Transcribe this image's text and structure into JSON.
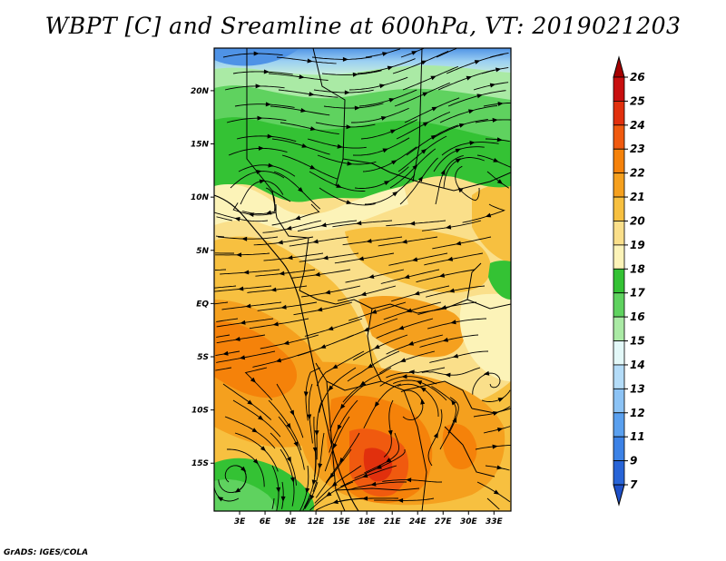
{
  "title": "WBPT [C] and Sreamline at 600hPa, VT: 2019021203",
  "credit": "GrADS: IGES/COLA",
  "map": {
    "lon_range": [
      0,
      35
    ],
    "lat_range": [
      -19.5,
      24
    ],
    "lat_ticks": [
      {
        "value": 20,
        "label": "20N"
      },
      {
        "value": 15,
        "label": "15N"
      },
      {
        "value": 10,
        "label": "10N"
      },
      {
        "value": 5,
        "label": "5N"
      },
      {
        "value": 0,
        "label": "EQ"
      },
      {
        "value": -5,
        "label": "5S"
      },
      {
        "value": -10,
        "label": "10S"
      },
      {
        "value": -15,
        "label": "15S"
      }
    ],
    "lon_ticks": [
      {
        "value": 3,
        "label": "3E"
      },
      {
        "value": 6,
        "label": "6E"
      },
      {
        "value": 9,
        "label": "9E"
      },
      {
        "value": 12,
        "label": "12E"
      },
      {
        "value": 15,
        "label": "15E"
      },
      {
        "value": 18,
        "label": "18E"
      },
      {
        "value": 21,
        "label": "21E"
      },
      {
        "value": 24,
        "label": "24E"
      },
      {
        "value": 27,
        "label": "27E"
      },
      {
        "value": 30,
        "label": "30E"
      },
      {
        "value": 33,
        "label": "33E"
      }
    ]
  },
  "colorbar": {
    "levels": [
      "26",
      "25",
      "24",
      "23",
      "22",
      "21",
      "20",
      "19",
      "18",
      "17",
      "16",
      "15",
      "14",
      "13",
      "12",
      "11",
      "9",
      "7"
    ],
    "colors": [
      "#a50000",
      "#c80f0f",
      "#e1300d",
      "#f05a0f",
      "#f5820a",
      "#f5a01e",
      "#f7c040",
      "#fadf8a",
      "#fcf3b8",
      "#34c234",
      "#5fd25f",
      "#aaeaa5",
      "#e3f8f8",
      "#b4dcf8",
      "#8cc3f5",
      "#5aa0ef",
      "#3c82e6",
      "#2864d7",
      "#1e50c8"
    ]
  }
}
